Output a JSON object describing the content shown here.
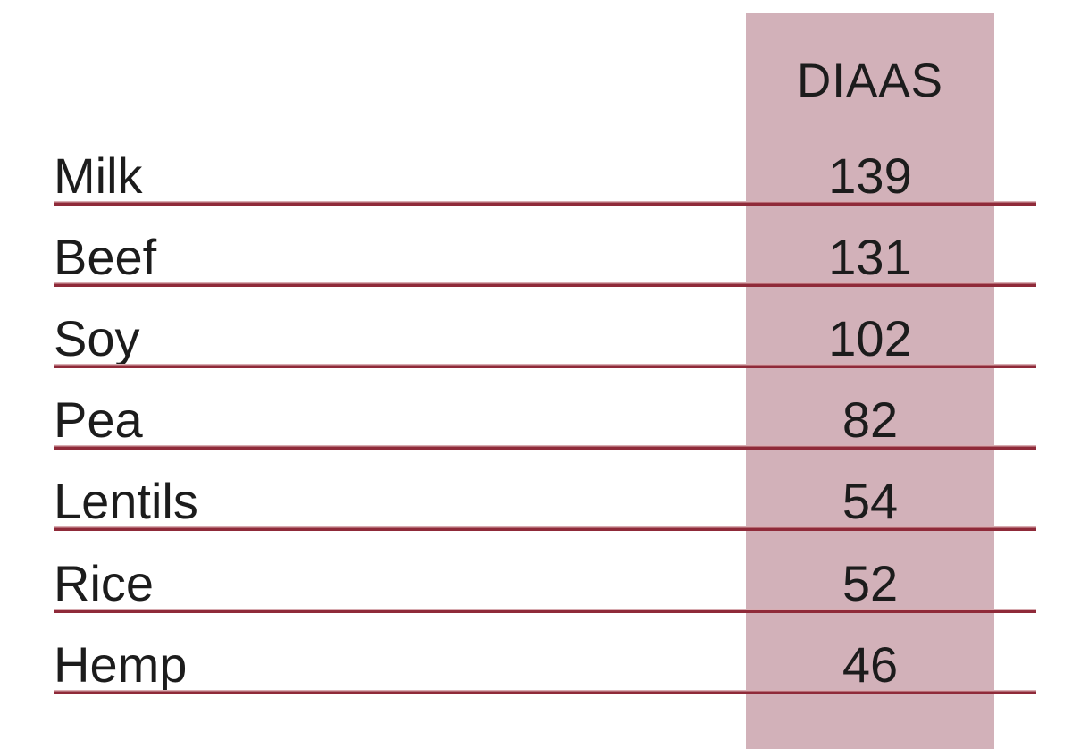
{
  "table": {
    "header": {
      "value_label": "DIAAS"
    },
    "rows": [
      {
        "label": "Milk",
        "value": "139"
      },
      {
        "label": "Beef",
        "value": "131"
      },
      {
        "label": "Soy",
        "value": "102"
      },
      {
        "label": "Pea",
        "value": "82"
      },
      {
        "label": "Lentils",
        "value": "54"
      },
      {
        "label": "Rice",
        "value": "52"
      },
      {
        "label": "Hemp",
        "value": "46"
      }
    ]
  },
  "colors": {
    "band": "#d2b1b9",
    "line_dark": "#8f2a39",
    "line_light": "#d8acb1",
    "text": "#1c1c1c",
    "bg": "#ffffff"
  },
  "chart_data": {
    "type": "table",
    "title": "",
    "columns": [
      "",
      "DIAAS"
    ],
    "categories": [
      "Milk",
      "Beef",
      "Soy",
      "Pea",
      "Lentils",
      "Rice",
      "Hemp"
    ],
    "values": [
      139,
      131,
      102,
      82,
      54,
      52,
      46
    ],
    "layout_hints": {
      "value_column_highlighted": true,
      "row_dividers": "dark-red horizontal rules",
      "grid": "rows only"
    }
  }
}
